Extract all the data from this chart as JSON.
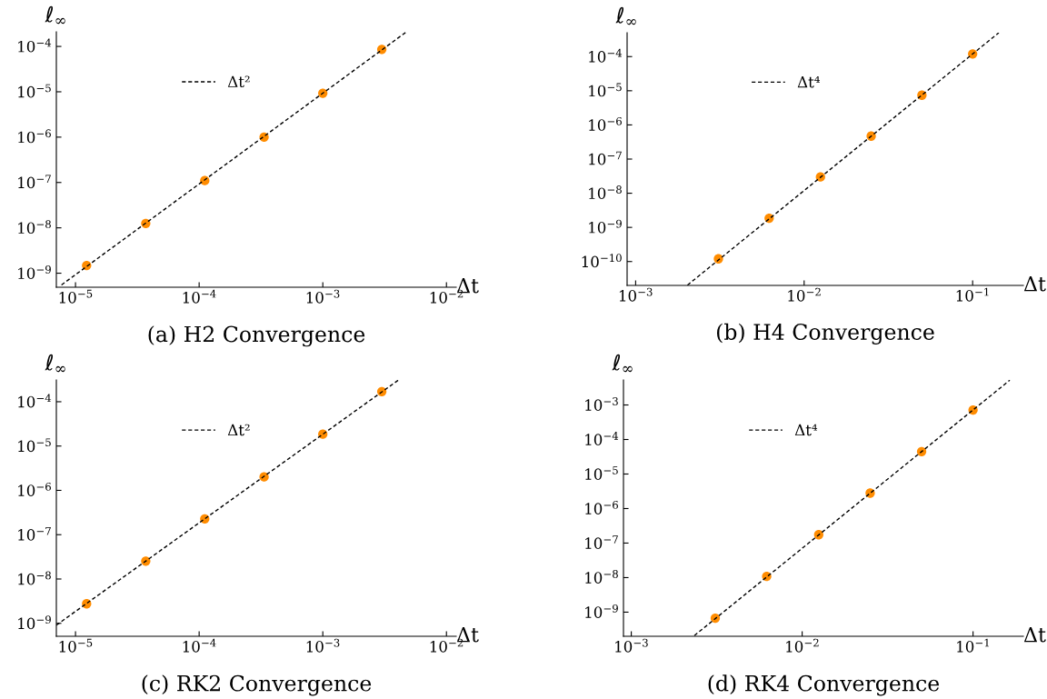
{
  "chart_data": [
    {
      "type": "scatter",
      "title": "(a) H2 Convergence",
      "xlabel": "Δt",
      "ylabel": "ℓ$_{∞}$",
      "log": "xy",
      "grid": false,
      "legend": "top left",
      "marker": "circle",
      "xlim": [
        7e-06,
        0.012
      ],
      "ylim": [
        4.9e-10,
        0.00021
      ],
      "xticks": [
        {
          "value": 1e-05,
          "label": "10$^{−5}$"
        },
        {
          "value": 0.0001,
          "label": "10$^{−4}$"
        },
        {
          "value": 0.001,
          "label": "10$^{−3}$"
        },
        {
          "value": 0.01,
          "label": "10$^{−2}$"
        }
      ],
      "yticks": [
        {
          "value": 1e-09,
          "label": "10$^{−9}$"
        },
        {
          "value": 1e-08,
          "label": "10$^{−8}$"
        },
        {
          "value": 1e-07,
          "label": "10$^{−7}$"
        },
        {
          "value": 1e-06,
          "label": "10$^{−6}$"
        },
        {
          "value": 1e-05,
          "label": "10$^{−5}$"
        },
        {
          "value": 0.0001,
          "label": "10$^{−4}$"
        }
      ],
      "series": [
        {
          "type": "line",
          "name": "Δt²",
          "color": "#000000",
          "line_style": "dashed",
          "marker": "none",
          "x": [
            7.7e-06,
            0.00473
          ],
          "values": [
            5.5e-10,
            0.000208
          ]
        },
        {
          "type": "scatter",
          "color": "#ff8c00",
          "x": [
            1.23e-05,
            3.7e-05,
            0.000111,
            0.000335,
            0.001,
            0.003
          ],
          "values": [
            1.48e-09,
            1.25e-08,
            1.1e-07,
            1e-06,
            9.3e-06,
            8.6e-05
          ]
        }
      ]
    },
    {
      "type": "scatter",
      "title": "(b) H4 Convergence",
      "xlabel": "Δt",
      "ylabel": "ℓ$_{∞}$",
      "log": "xy",
      "grid": false,
      "legend": "top left",
      "marker": "circle",
      "xlim": [
        0.00089,
        0.2
      ],
      "ylim": [
        2e-11,
        0.0005
      ],
      "xticks": [
        {
          "value": 0.001,
          "label": "10$^{−3}$"
        },
        {
          "value": 0.01,
          "label": "10$^{−2}$"
        },
        {
          "value": 0.1,
          "label": "10$^{−1}$"
        }
      ],
      "yticks": [
        {
          "value": 1e-10,
          "label": "10$^{−10}$"
        },
        {
          "value": 1e-09,
          "label": "10$^{−9}$"
        },
        {
          "value": 1e-08,
          "label": "10$^{−8}$"
        },
        {
          "value": 1e-07,
          "label": "10$^{−7}$"
        },
        {
          "value": 1e-06,
          "label": "10$^{−6}$"
        },
        {
          "value": 1e-05,
          "label": "10$^{−5}$"
        },
        {
          "value": 0.0001,
          "label": "10$^{−4}$"
        }
      ],
      "series": [
        {
          "type": "line",
          "name": "Δt⁴",
          "color": "#000000",
          "line_style": "dashed",
          "marker": "none",
          "x": [
            0.00203,
            0.143
          ],
          "values": [
            2.04e-11,
            0.0005
          ]
        },
        {
          "type": "scatter",
          "color": "#ff8c00",
          "x": [
            0.0031,
            0.0062,
            0.0125,
            0.025,
            0.05,
            0.1
          ],
          "values": [
            1.2e-10,
            1.85e-09,
            2.99e-08,
            4.7e-07,
            7.4e-06,
            0.00012
          ]
        }
      ]
    },
    {
      "type": "scatter",
      "title": "(c) RK2 Convergence",
      "xlabel": "Δt",
      "ylabel": "ℓ$_{∞}$",
      "log": "xy",
      "grid": false,
      "legend": "top left",
      "marker": "circle",
      "xlim": [
        7e-06,
        0.012
      ],
      "ylim": [
        5.1e-10,
        0.00031
      ],
      "xticks": [
        {
          "value": 1e-05,
          "label": "10$^{−5}$"
        },
        {
          "value": 0.0001,
          "label": "10$^{−4}$"
        },
        {
          "value": 0.001,
          "label": "10$^{−3}$"
        },
        {
          "value": 0.01,
          "label": "10$^{−2}$"
        }
      ],
      "yticks": [
        {
          "value": 1e-09,
          "label": "10$^{−9}$"
        },
        {
          "value": 1e-08,
          "label": "10$^{−8}$"
        },
        {
          "value": 1e-07,
          "label": "10$^{−7}$"
        },
        {
          "value": 1e-06,
          "label": "10$^{−6}$"
        },
        {
          "value": 1e-05,
          "label": "10$^{−5}$"
        },
        {
          "value": 0.0001,
          "label": "10$^{−4}$"
        }
      ],
      "series": [
        {
          "type": "line",
          "name": "Δt²",
          "color": "#000000",
          "line_style": "dashed",
          "marker": "none",
          "x": [
            7e-06,
            0.0041
          ],
          "values": [
            9.1e-10,
            0.00031
          ]
        },
        {
          "type": "scatter",
          "color": "#ff8c00",
          "x": [
            1.23e-05,
            3.7e-05,
            0.000111,
            0.000335,
            0.001,
            0.003
          ],
          "values": [
            2.76e-09,
            2.53e-08,
            2.27e-07,
            2.01e-06,
            1.85e-05,
            0.000169
          ]
        }
      ]
    },
    {
      "type": "scatter",
      "title": "(d) RK4 Convergence",
      "xlabel": "Δt",
      "ylabel": "ℓ$_{∞}$",
      "log": "xy",
      "grid": false,
      "legend": "top left",
      "marker": "circle",
      "xlim": [
        0.0009,
        0.197
      ],
      "ylim": [
        2e-10,
        0.0053
      ],
      "xticks": [
        {
          "value": 0.001,
          "label": "10$^{−3}$"
        },
        {
          "value": 0.01,
          "label": "10$^{−2}$"
        },
        {
          "value": 0.1,
          "label": "10$^{−1}$"
        }
      ],
      "yticks": [
        {
          "value": 1e-09,
          "label": "10$^{−9}$"
        },
        {
          "value": 1e-08,
          "label": "10$^{−8}$"
        },
        {
          "value": 1e-07,
          "label": "10$^{−7}$"
        },
        {
          "value": 1e-06,
          "label": "10$^{−6}$"
        },
        {
          "value": 1e-05,
          "label": "10$^{−5}$"
        },
        {
          "value": 0.0001,
          "label": "10$^{−4}$"
        },
        {
          "value": 0.001,
          "label": "10$^{−3}$"
        }
      ],
      "series": [
        {
          "type": "line",
          "name": "Δt⁴",
          "color": "#000000",
          "line_style": "dashed",
          "marker": "none",
          "x": [
            0.00234,
            0.164
          ],
          "values": [
            2.1e-10,
            0.0052
          ]
        },
        {
          "type": "scatter",
          "color": "#ff8c00",
          "x": [
            0.0031,
            0.0062,
            0.0125,
            0.025,
            0.05,
            0.1
          ],
          "values": [
            6.7e-10,
            1.09e-08,
            1.75e-07,
            2.8e-06,
            4.47e-05,
            0.000715
          ]
        }
      ]
    }
  ]
}
